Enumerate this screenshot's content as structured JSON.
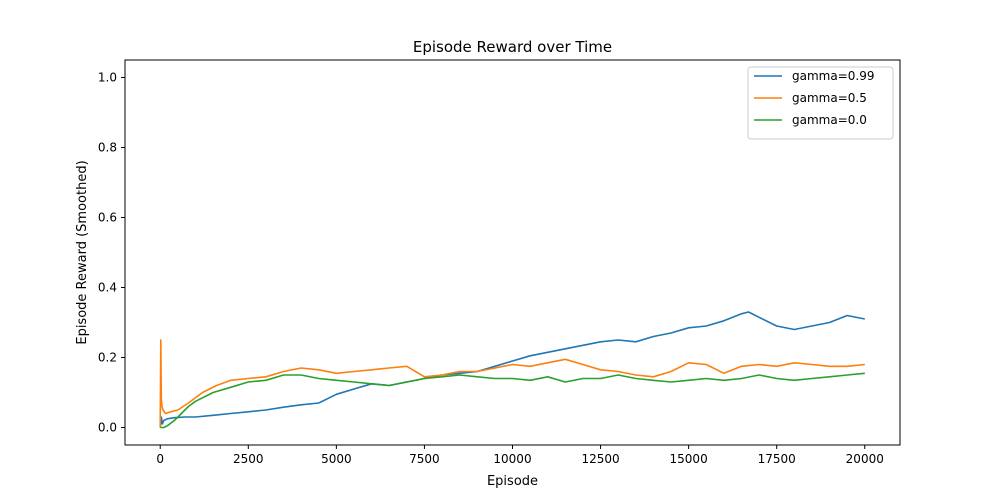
{
  "chart_data": {
    "type": "line",
    "title": "Episode Reward over Time",
    "xlabel": "Episode",
    "ylabel": "Episode Reward (Smoothed)",
    "xlim": [
      -1000,
      21000
    ],
    "ylim": [
      -0.05,
      1.05
    ],
    "xticks": [
      0,
      2500,
      5000,
      7500,
      10000,
      12500,
      15000,
      17500,
      20000
    ],
    "yticks": [
      0.0,
      0.2,
      0.4,
      0.6,
      0.8,
      1.0
    ],
    "xtick_labels": [
      "0",
      "2500",
      "5000",
      "7500",
      "10000",
      "12500",
      "15000",
      "17500",
      "20000"
    ],
    "ytick_labels": [
      "0.0",
      "0.2",
      "0.4",
      "0.6",
      "0.8",
      "1.0"
    ],
    "grid": false,
    "legend_position": "top-right",
    "series": [
      {
        "name": "gamma=0.99",
        "color": "#1f77b4",
        "x": [
          0,
          30,
          60,
          100,
          200,
          400,
          700,
          1000,
          1500,
          2000,
          2500,
          3000,
          3500,
          4000,
          4500,
          5000,
          5500,
          6000,
          6500,
          7000,
          7500,
          8000,
          8500,
          9000,
          9500,
          10000,
          10500,
          11000,
          11500,
          12000,
          12500,
          13000,
          13500,
          14000,
          14500,
          15000,
          15500,
          16000,
          16500,
          16700,
          17000,
          17500,
          18000,
          18500,
          19000,
          19500,
          20000
        ],
        "y": [
          0.0,
          0.03,
          0.01,
          0.02,
          0.025,
          0.028,
          0.03,
          0.03,
          0.035,
          0.04,
          0.045,
          0.05,
          0.058,
          0.065,
          0.07,
          0.095,
          0.11,
          0.125,
          0.12,
          0.13,
          0.14,
          0.15,
          0.155,
          0.16,
          0.175,
          0.19,
          0.205,
          0.215,
          0.225,
          0.235,
          0.245,
          0.25,
          0.245,
          0.26,
          0.27,
          0.285,
          0.29,
          0.305,
          0.325,
          0.33,
          0.315,
          0.29,
          0.28,
          0.29,
          0.3,
          0.32,
          0.31
        ]
      },
      {
        "name": "gamma=0.5",
        "color": "#ff7f0e",
        "x": [
          0,
          15,
          30,
          50,
          80,
          150,
          300,
          500,
          800,
          1200,
          1600,
          2000,
          2500,
          3000,
          3500,
          4000,
          4500,
          5000,
          5500,
          6000,
          6500,
          7000,
          7500,
          8000,
          8500,
          9000,
          9500,
          10000,
          10500,
          11000,
          11500,
          12000,
          12500,
          13000,
          13500,
          14000,
          14500,
          15000,
          15500,
          16000,
          16500,
          17000,
          17500,
          18000,
          18500,
          19000,
          19500,
          20000
        ],
        "y": [
          0.0,
          0.25,
          0.08,
          0.06,
          0.05,
          0.04,
          0.045,
          0.05,
          0.07,
          0.1,
          0.12,
          0.135,
          0.14,
          0.145,
          0.16,
          0.17,
          0.165,
          0.155,
          0.16,
          0.165,
          0.17,
          0.175,
          0.145,
          0.15,
          0.16,
          0.16,
          0.17,
          0.18,
          0.175,
          0.185,
          0.195,
          0.18,
          0.165,
          0.16,
          0.15,
          0.145,
          0.16,
          0.185,
          0.18,
          0.155,
          0.175,
          0.18,
          0.175,
          0.185,
          0.18,
          0.175,
          0.175,
          0.18
        ]
      },
      {
        "name": "gamma=0.0",
        "color": "#2ca02c",
        "x": [
          0,
          100,
          200,
          400,
          600,
          800,
          1000,
          1500,
          2000,
          2500,
          3000,
          3500,
          4000,
          4500,
          5000,
          5500,
          6000,
          6500,
          7000,
          7500,
          8000,
          8500,
          9000,
          9500,
          10000,
          10500,
          11000,
          11500,
          12000,
          12500,
          13000,
          13500,
          14000,
          14500,
          15000,
          15500,
          16000,
          16500,
          17000,
          17500,
          18000,
          18500,
          19000,
          19500,
          20000
        ],
        "y": [
          0.0,
          0.0,
          0.005,
          0.02,
          0.04,
          0.06,
          0.075,
          0.1,
          0.115,
          0.13,
          0.135,
          0.15,
          0.15,
          0.14,
          0.135,
          0.13,
          0.125,
          0.12,
          0.13,
          0.14,
          0.145,
          0.15,
          0.145,
          0.14,
          0.14,
          0.135,
          0.145,
          0.13,
          0.14,
          0.14,
          0.15,
          0.14,
          0.135,
          0.13,
          0.135,
          0.14,
          0.135,
          0.14,
          0.15,
          0.14,
          0.135,
          0.14,
          0.145,
          0.15,
          0.155
        ]
      }
    ]
  }
}
